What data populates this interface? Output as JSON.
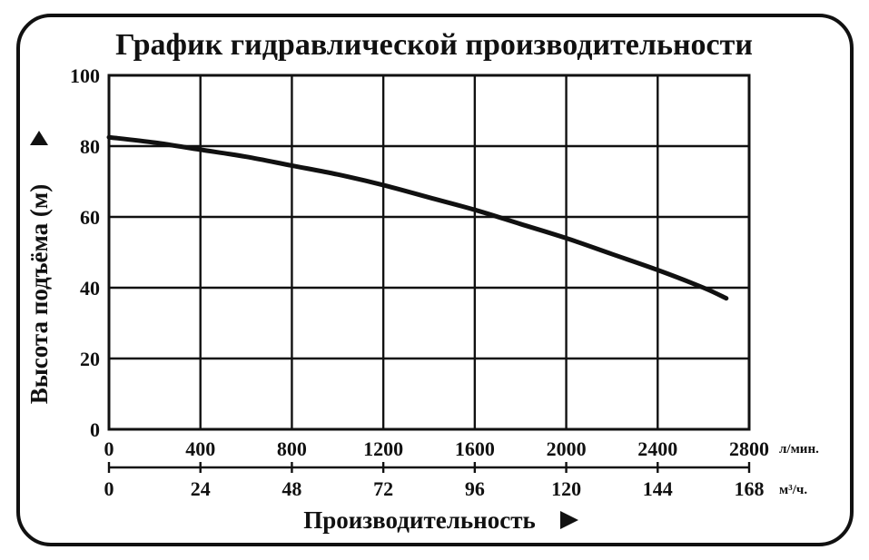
{
  "chart_data": {
    "type": "line",
    "title": "График гидравлической производительности",
    "ylabel": "Высота подъёма (м)",
    "xlabel": "Производительность",
    "ylim": [
      0,
      100
    ],
    "yticks": [
      "0",
      "20",
      "40",
      "60",
      "80",
      "100"
    ],
    "x_primary": {
      "unit": "л/мин.",
      "lim": [
        0,
        2800
      ],
      "ticks": [
        "0",
        "400",
        "800",
        "1200",
        "1600",
        "2000",
        "2400",
        "2800"
      ]
    },
    "x_secondary": {
      "unit": "м³/ч.",
      "lim": [
        0,
        168
      ],
      "ticks": [
        "0",
        "24",
        "48",
        "72",
        "96",
        "120",
        "144",
        "168"
      ]
    },
    "grid": true,
    "series": [
      {
        "x": [
          0,
          200,
          400,
          600,
          800,
          1000,
          1200,
          1400,
          1600,
          1800,
          2000,
          2200,
          2400,
          2600,
          2700
        ],
        "values": [
          82.5,
          81,
          79,
          77,
          74.5,
          72,
          69,
          65.5,
          62,
          58,
          54,
          49.5,
          45,
          40,
          37
        ]
      }
    ]
  }
}
